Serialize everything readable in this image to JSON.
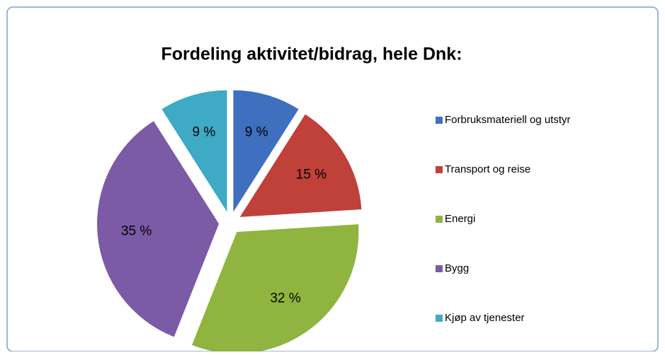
{
  "chart_data": {
    "type": "pie",
    "title": "Fordeling aktivitet/bidrag, hele Dnk:",
    "categories": [
      "Forbruksmateriell og utstyr",
      "Transport og reise",
      "Energi",
      "Bygg",
      "Kjøp av tjenester"
    ],
    "values": [
      9,
      15,
      32,
      35,
      9
    ],
    "value_labels": [
      "9 %",
      "15 %",
      "32 %",
      "35 %",
      "9 %"
    ],
    "colors": [
      "#3f6fbf",
      "#c0403a",
      "#8fb440",
      "#7b5aa6",
      "#3eaac6"
    ],
    "legend": "right"
  }
}
